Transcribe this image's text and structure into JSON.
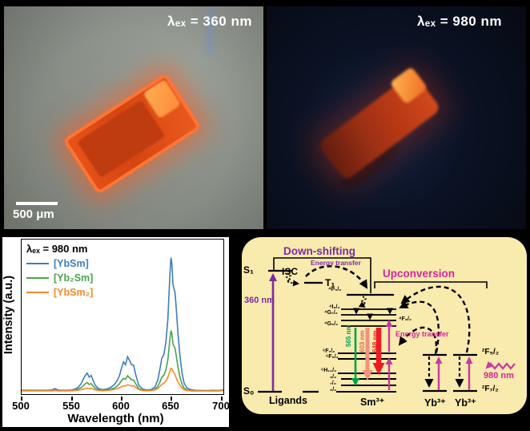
{
  "photo_left": {
    "label": "λₑₓ = 360 nm",
    "scalebar": "500 μm"
  },
  "photo_right": {
    "label": "λₑₓ = 980 nm"
  },
  "chart_data": {
    "type": "line",
    "title": "λₑₓ = 980 nm",
    "xlabel": "Wavelength (nm)",
    "ylabel": "Intensity (a.u.)",
    "xlim": [
      500,
      700
    ],
    "xticks": [
      500,
      550,
      600,
      650,
      700
    ],
    "grid": false,
    "legend_position": "upper-left",
    "x": [
      500,
      505,
      510,
      515,
      520,
      525,
      530,
      533,
      536,
      540,
      545,
      550,
      553,
      556,
      559,
      561,
      563,
      565,
      567,
      569,
      571,
      573,
      576,
      580,
      584,
      588,
      592,
      595,
      597,
      599,
      601,
      603,
      605,
      607,
      609,
      611,
      613,
      616,
      620,
      624,
      628,
      632,
      635,
      637,
      639,
      641,
      643,
      645,
      647,
      648,
      649,
      650,
      651,
      652,
      653,
      655,
      657,
      659,
      661,
      664,
      668,
      672,
      676,
      680,
      685,
      690,
      695,
      700
    ],
    "series": [
      {
        "name": "[YbSm]",
        "color": "#3e7dbd",
        "values": [
          0.01,
          0.01,
          0.01,
          0.01,
          0.01,
          0.01,
          0.012,
          0.022,
          0.012,
          0.01,
          0.01,
          0.012,
          0.018,
          0.03,
          0.055,
          0.085,
          0.11,
          0.128,
          0.1,
          0.112,
          0.075,
          0.045,
          0.022,
          0.015,
          0.018,
          0.028,
          0.05,
          0.08,
          0.11,
          0.16,
          0.205,
          0.185,
          0.24,
          0.215,
          0.185,
          0.182,
          0.12,
          0.045,
          0.018,
          0.012,
          0.015,
          0.03,
          0.08,
          0.15,
          0.23,
          0.255,
          0.34,
          0.5,
          0.8,
          0.92,
          0.88,
          0.74,
          0.705,
          0.685,
          0.6,
          0.4,
          0.245,
          0.13,
          0.06,
          0.025,
          0.014,
          0.01,
          0.009,
          0.009,
          0.008,
          0.01,
          0.009,
          0.012
        ]
      },
      {
        "name": "[Yb₂Sm]",
        "color": "#4aa34f",
        "values": [
          0.008,
          0.008,
          0.008,
          0.008,
          0.008,
          0.008,
          0.008,
          0.01,
          0.008,
          0.008,
          0.008,
          0.009,
          0.012,
          0.018,
          0.028,
          0.042,
          0.055,
          0.063,
          0.05,
          0.056,
          0.038,
          0.024,
          0.013,
          0.01,
          0.012,
          0.016,
          0.026,
          0.04,
          0.055,
          0.075,
          0.092,
          0.085,
          0.11,
          0.096,
          0.082,
          0.08,
          0.055,
          0.022,
          0.01,
          0.008,
          0.01,
          0.016,
          0.036,
          0.065,
          0.1,
          0.113,
          0.15,
          0.22,
          0.36,
          0.42,
          0.4,
          0.33,
          0.312,
          0.3,
          0.26,
          0.17,
          0.1,
          0.054,
          0.025,
          0.012,
          0.008,
          0.007,
          0.007,
          0.007,
          0.007,
          0.008,
          0.007,
          0.009
        ]
      },
      {
        "name": "[YbSm₂]",
        "color": "#f8892a",
        "values": [
          0.006,
          0.006,
          0.006,
          0.006,
          0.006,
          0.006,
          0.006,
          0.007,
          0.006,
          0.006,
          0.006,
          0.007,
          0.008,
          0.01,
          0.014,
          0.018,
          0.022,
          0.026,
          0.022,
          0.023,
          0.018,
          0.013,
          0.009,
          0.007,
          0.008,
          0.011,
          0.016,
          0.022,
          0.028,
          0.034,
          0.04,
          0.04,
          0.048,
          0.044,
          0.04,
          0.042,
          0.032,
          0.015,
          0.008,
          0.006,
          0.008,
          0.012,
          0.022,
          0.035,
          0.05,
          0.058,
          0.074,
          0.1,
          0.14,
          0.16,
          0.156,
          0.142,
          0.13,
          0.12,
          0.1,
          0.068,
          0.044,
          0.027,
          0.014,
          0.008,
          0.006,
          0.005,
          0.005,
          0.005,
          0.005,
          0.006,
          0.005,
          0.007
        ]
      }
    ]
  },
  "diagram": {
    "title_down_shifting": "Down-shifting",
    "title_upconversion": "Upconversion",
    "energy_transfer_top": "Energy transfer",
    "energy_transfer_mid": "Energy transfer",
    "s1": "S₁",
    "t1": "T₁",
    "s0": "S₀",
    "isc": "ISC",
    "nm360": "360 nm",
    "nm980": "980 nm",
    "nm565": "565 nm",
    "nm603": "603 nm",
    "nm648": "648 nm",
    "ligands": "Ligands",
    "sm_ion": "Sm³⁺",
    "yb_ion_1": "Yb³⁺",
    "yb_ion_2": "Yb³⁺",
    "sm_levels": {
      "p52": "⁴P₅/₂",
      "i92": "⁴I₉/₂",
      "g72": "⁴G₇/₂",
      "f32": "⁴F₃/₂",
      "g52": "⁴G₅/₂",
      "f72": "⁶F₇/₂",
      "f52": "⁶F₅/₂",
      "h112": "⁶H₁₁/₂",
      "h92": "₉/₂",
      "h72": "₇/₂",
      "h52": "₅/₂"
    },
    "yb_levels": {
      "f52": "²F₅/₂",
      "f72": "²F₇/₂"
    },
    "colors": {
      "purple": "#7a2ca0",
      "magenta": "#c9399f",
      "green": "#00a14b",
      "salmon": "#f2917f",
      "red": "#ed1c24",
      "panel_bg": "#f9eaae"
    }
  }
}
